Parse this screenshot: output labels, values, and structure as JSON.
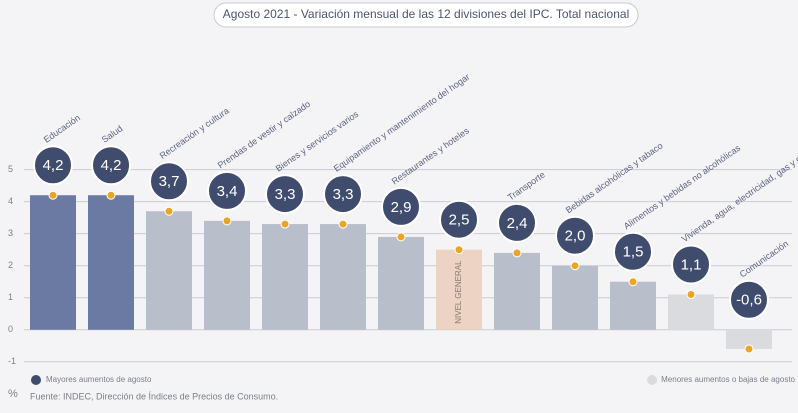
{
  "chart_data": {
    "type": "bar",
    "title": "Agosto 2021 - Variación mensual de las 12 divisiones del IPC. Total nacional",
    "categories": [
      "Educación",
      "Salud",
      "Recreación y cultura",
      "Prendas de vestir y calzado",
      "Bienes y servicios varios",
      "Equipamiento y mantenimiento del hogar",
      "Restaurantes y hoteles",
      "NIVEL GENERAL",
      "Transporte",
      "Bebidas alcohólicas y tabaco",
      "Alimentos y bebidas no alcohólicas",
      "Vivienda, agua, electricidad, gas y otros combustibles",
      "Comunicación"
    ],
    "values": [
      4.2,
      4.2,
      3.7,
      3.4,
      3.3,
      3.3,
      2.9,
      2.5,
      2.4,
      2.0,
      1.5,
      1.1,
      -0.6
    ],
    "value_labels": [
      "4,2",
      "4,2",
      "3,7",
      "3,4",
      "3,3",
      "3,3",
      "2,9",
      "2,5",
      "2,4",
      "2,0",
      "1,5",
      "1,1",
      "-0,6"
    ],
    "colors": [
      "#6b7aa3",
      "#6b7aa3",
      "#b9becb",
      "#b9becb",
      "#b9becb",
      "#b9becb",
      "#b9becb",
      "#ecd3c3",
      "#b9becb",
      "#b9becb",
      "#b9becb",
      "#dadbde",
      "#dadbde"
    ],
    "ylim": [
      -1.1,
      5.3
    ],
    "yticks": [
      -1,
      0,
      1,
      2,
      3,
      4,
      5
    ],
    "grid": true,
    "y_unit": "%",
    "legend": [
      {
        "name": "Mayores aumentos de agosto",
        "color": "#3f4c6e"
      },
      {
        "name": "Menores aumentos o bajas de agosto",
        "color": "#dadbde"
      }
    ],
    "source": "Fuente: INDEC, Dirección de Índices de Precios de Consumo."
  }
}
